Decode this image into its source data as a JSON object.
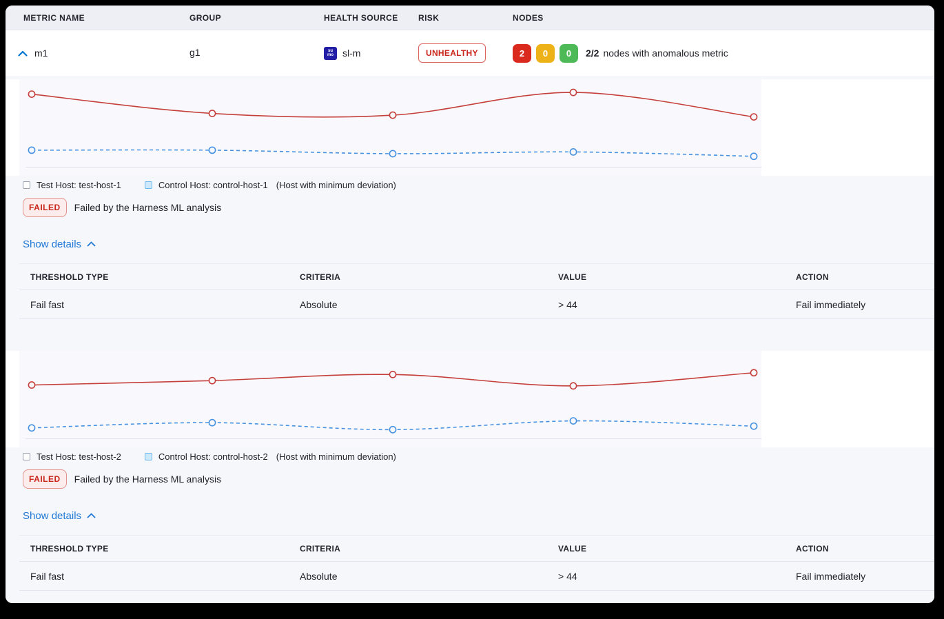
{
  "columns": {
    "metric_name": "METRIC NAME",
    "group": "GROUP",
    "health_source": "HEALTH SOURCE",
    "risk": "RISK",
    "nodes": "NODES"
  },
  "metric_row": {
    "metric_name": "m1",
    "group": "g1",
    "health_source": {
      "icon_top": "su",
      "icon_bottom": "mo",
      "label": "sl-m",
      "icon_color": "#221fa6"
    },
    "risk_label": "UNHEALTHY",
    "nodes": {
      "counts": [
        {
          "value": "2",
          "color": "#da291d"
        },
        {
          "value": "0",
          "color": "#eeb219"
        },
        {
          "value": "0",
          "color": "#4dba57"
        }
      ],
      "summary_bold": "2/2",
      "summary_text": "nodes with anomalous metric"
    }
  },
  "hosts": [
    {
      "legend": {
        "test_label": "Test Host: test-host-1",
        "control_label": "Control Host: control-host-1",
        "note": "(Host with minimum deviation)"
      },
      "status": {
        "badge": "FAILED",
        "message": "Failed by the Harness ML analysis"
      },
      "show_details_label": "Show details",
      "table": {
        "headers": [
          "THRESHOLD TYPE",
          "CRITERIA",
          "VALUE",
          "ACTION"
        ],
        "rows": [
          [
            "Fail fast",
            "Absolute",
            "> 44",
            "Fail immediately"
          ]
        ]
      }
    },
    {
      "legend": {
        "test_label": "Test Host: test-host-2",
        "control_label": "Control Host: control-host-2",
        "note": "(Host with minimum deviation)"
      },
      "status": {
        "badge": "FAILED",
        "message": "Failed by the Harness ML analysis"
      },
      "show_details_label": "Show details",
      "table": {
        "headers": [
          "THRESHOLD TYPE",
          "CRITERIA",
          "VALUE",
          "ACTION"
        ],
        "rows": [
          [
            "Fail fast",
            "Absolute",
            "> 44",
            "Fail immediately"
          ]
        ]
      }
    }
  ],
  "chart_data": [
    {
      "type": "line",
      "x": [
        1,
        2,
        3,
        4,
        5
      ],
      "series": [
        {
          "name": "Test Host: test-host-1",
          "color": "#c5403b",
          "style": "solid",
          "values": [
            83,
            61,
            59,
            85,
            57
          ]
        },
        {
          "name": "Control Host: control-host-1",
          "color": "#4692e0",
          "style": "dashed",
          "values": [
            19,
            19,
            15,
            17,
            12
          ]
        }
      ],
      "ylim": [
        0,
        100
      ],
      "y_unit": "relative (no axis labels shown)",
      "grid": false,
      "axis_labels": false,
      "legend_position": "bottom"
    },
    {
      "type": "line",
      "x": [
        1,
        2,
        3,
        4,
        5
      ],
      "series": [
        {
          "name": "Test Host: test-host-2",
          "color": "#c5403b",
          "style": "solid",
          "values": [
            61,
            66,
            73,
            60,
            75
          ]
        },
        {
          "name": "Control Host: control-host-2",
          "color": "#4692e0",
          "style": "dashed",
          "values": [
            12,
            18,
            10,
            20,
            14
          ]
        }
      ],
      "ylim": [
        0,
        100
      ],
      "y_unit": "relative (no axis labels shown)",
      "grid": false,
      "axis_labels": false,
      "legend_position": "bottom"
    }
  ],
  "colors": {
    "accent_blue": "#0278d5",
    "link_blue": "#2178d7",
    "error_red": "#c9251b",
    "chart_red": "#c5403b",
    "chart_blue": "#4692e0",
    "header_bg": "#edeff5",
    "details_bg": "#f6f7fb",
    "chart_bg": "#f8f8fd"
  }
}
